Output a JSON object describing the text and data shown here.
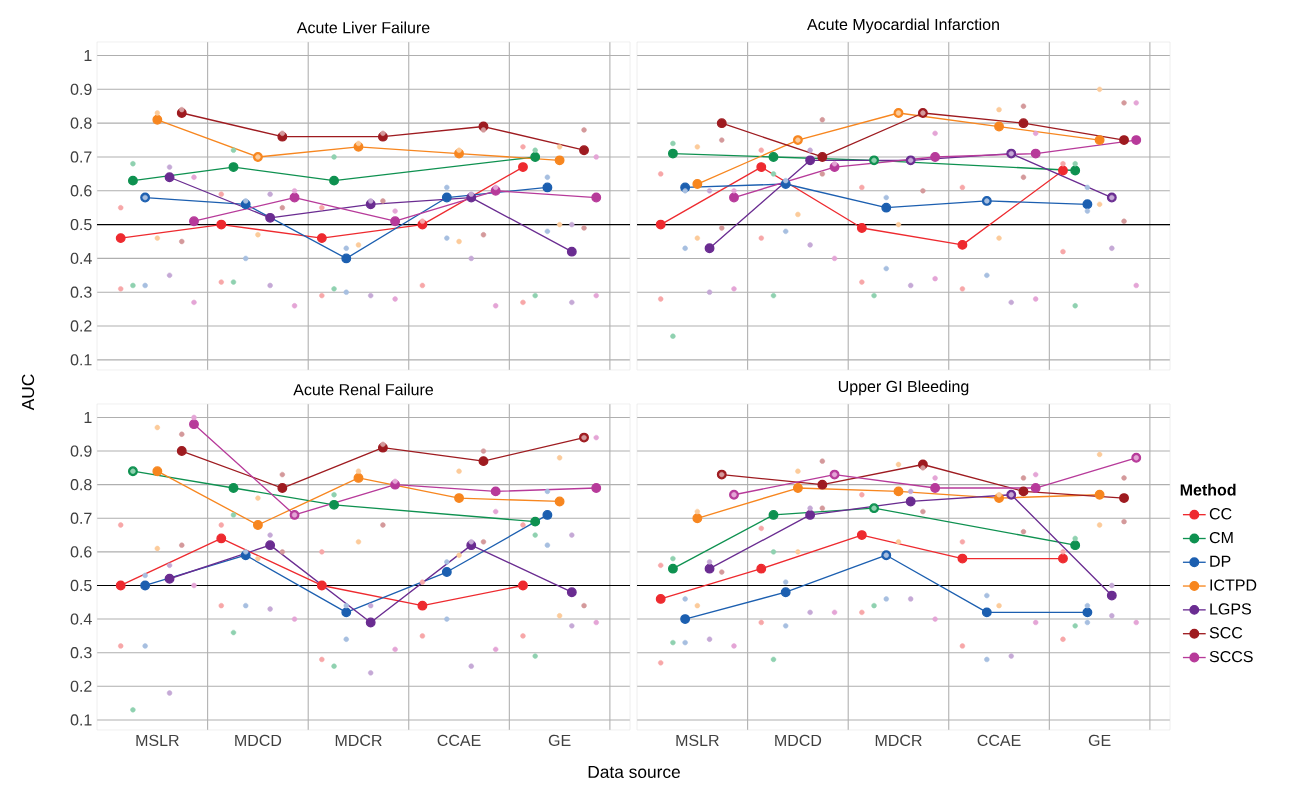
{
  "chart_data": [
    {
      "type": "line",
      "title": "Acute Liver Failure",
      "ylabel": "AUC",
      "categories": [
        "MSLR",
        "MDCD",
        "MDCR",
        "CCAE",
        "GE"
      ],
      "ylim": [
        0.07,
        1.04
      ],
      "yticks": [
        0.1,
        0.2,
        0.3,
        0.4,
        0.5,
        0.6,
        0.7,
        0.8,
        0.9,
        1
      ],
      "grid": true,
      "marker": "circle",
      "tick_labels": "y",
      "ref_lines": [
        {
          "axis": "y",
          "value": 0.5,
          "color": "#000000"
        }
      ],
      "series": [
        {
          "type": "scatter",
          "color": "#f7a7a8",
          "x": [
            "MSLR",
            "MSLR",
            "MDCD",
            "MDCD",
            "MDCR",
            "MDCR",
            "CCAE",
            "CCAE",
            "GE",
            "GE"
          ],
          "values": [
            0.55,
            0.31,
            0.59,
            0.33,
            0.55,
            0.29,
            0.51,
            0.32,
            0.73,
            0.27
          ]
        },
        {
          "type": "scatter",
          "color": "#8fd1b0",
          "x": [
            "MSLR",
            "MSLR",
            "MDCD",
            "MDCD",
            "MDCR",
            "MDCR",
            "GE",
            "GE"
          ],
          "values": [
            0.68,
            0.32,
            0.72,
            0.33,
            0.7,
            0.31,
            0.72,
            0.29
          ]
        },
        {
          "type": "scatter",
          "color": "#a7bfe0",
          "x": [
            "MSLR",
            "MSLR",
            "MDCD",
            "MDCD",
            "MDCR",
            "MDCR",
            "CCAE",
            "CCAE",
            "GE",
            "GE"
          ],
          "values": [
            0.58,
            0.32,
            0.57,
            0.4,
            0.43,
            0.3,
            0.61,
            0.46,
            0.64,
            0.48
          ]
        },
        {
          "type": "scatter",
          "color": "#fccb9a",
          "x": [
            "MSLR",
            "MSLR",
            "MDCD",
            "MDCD",
            "MDCR",
            "MDCR",
            "CCAE",
            "CCAE",
            "GE",
            "GE"
          ],
          "values": [
            0.83,
            0.46,
            0.7,
            0.47,
            0.74,
            0.44,
            0.72,
            0.45,
            0.73,
            0.5
          ]
        },
        {
          "type": "scatter",
          "color": "#c5a9d6",
          "x": [
            "MSLR",
            "MSLR",
            "MDCD",
            "MDCD",
            "MDCR",
            "MDCR",
            "CCAE",
            "CCAE",
            "GE",
            "GE"
          ],
          "values": [
            0.67,
            0.35,
            0.59,
            0.32,
            0.57,
            0.29,
            0.59,
            0.4,
            0.5,
            0.27
          ]
        },
        {
          "type": "scatter",
          "color": "#d4999b",
          "x": [
            "MSLR",
            "MSLR",
            "MDCD",
            "MDCD",
            "MDCR",
            "MDCR",
            "CCAE",
            "CCAE",
            "GE",
            "GE"
          ],
          "values": [
            0.84,
            0.45,
            0.77,
            0.55,
            0.77,
            0.57,
            0.78,
            0.47,
            0.78,
            0.49
          ]
        },
        {
          "type": "scatter",
          "color": "#e4a5d6",
          "x": [
            "MSLR",
            "MSLR",
            "MDCD",
            "MDCD",
            "MDCR",
            "MDCR",
            "CCAE",
            "CCAE",
            "GE",
            "GE"
          ],
          "values": [
            0.64,
            0.27,
            0.6,
            0.26,
            0.54,
            0.28,
            0.61,
            0.26,
            0.7,
            0.29
          ]
        },
        {
          "color": "#ee2a2f",
          "values": [
            0.46,
            0.5,
            0.46,
            0.5,
            0.67
          ]
        },
        {
          "color": "#0e9150",
          "values": [
            0.63,
            0.67,
            0.63,
            null,
            0.7
          ]
        },
        {
          "color": "#1c5fb0",
          "values": [
            0.58,
            0.56,
            0.4,
            0.58,
            0.61
          ]
        },
        {
          "color": "#f7861f",
          "values": [
            0.81,
            0.7,
            0.73,
            0.71,
            0.69
          ]
        },
        {
          "color": "#6a2c91",
          "values": [
            0.64,
            0.52,
            0.56,
            0.58,
            0.42
          ]
        },
        {
          "color": "#9e1b20",
          "values": [
            0.83,
            0.76,
            0.76,
            0.79,
            0.72
          ]
        },
        {
          "color": "#b73a9a",
          "values": [
            0.51,
            0.58,
            0.51,
            0.6,
            0.58
          ]
        }
      ]
    },
    {
      "type": "line",
      "title": "Acute Myocardial Infarction",
      "categories": [
        "MSLR",
        "MDCD",
        "MDCR",
        "CCAE",
        "GE"
      ],
      "ylim": [
        0.07,
        1.04
      ],
      "yticks": [
        0.1,
        0.2,
        0.3,
        0.4,
        0.5,
        0.6,
        0.7,
        0.8,
        0.9,
        1
      ],
      "grid": true,
      "marker": "circle",
      "tick_labels": false,
      "legend": "right",
      "legend_title": "Method",
      "ref_lines": [
        {
          "axis": "y",
          "value": 0.5,
          "color": "#000000"
        }
      ],
      "series": [
        {
          "type": "scatter",
          "color": "#f7a7a8",
          "x": [
            "MSLR",
            "MSLR",
            "MDCD",
            "MDCD",
            "MDCR",
            "MDCR",
            "CCAE",
            "CCAE",
            "GE",
            "GE"
          ],
          "values": [
            0.65,
            0.28,
            0.72,
            0.46,
            0.61,
            0.33,
            0.61,
            0.31,
            0.68,
            0.42
          ]
        },
        {
          "type": "scatter",
          "color": "#8fd1b0",
          "x": [
            "MSLR",
            "MSLR",
            "MDCD",
            "MDCD",
            "MDCR",
            "MDCR",
            "GE",
            "GE"
          ],
          "values": [
            0.74,
            0.17,
            0.65,
            0.29,
            0.69,
            0.29,
            0.68,
            0.26
          ]
        },
        {
          "type": "scatter",
          "color": "#a7bfe0",
          "x": [
            "MSLR",
            "MSLR",
            "MDCD",
            "MDCD",
            "MDCR",
            "MDCR",
            "CCAE",
            "CCAE",
            "GE",
            "GE"
          ],
          "values": [
            0.6,
            0.43,
            0.63,
            0.48,
            0.58,
            0.37,
            0.57,
            0.35,
            0.61,
            0.54
          ]
        },
        {
          "type": "scatter",
          "color": "#fccb9a",
          "x": [
            "MSLR",
            "MSLR",
            "MDCD",
            "MDCD",
            "MDCR",
            "MDCR",
            "CCAE",
            "CCAE",
            "GE",
            "GE"
          ],
          "values": [
            0.73,
            0.46,
            0.75,
            0.53,
            0.83,
            0.5,
            0.84,
            0.46,
            0.9,
            0.56
          ]
        },
        {
          "type": "scatter",
          "color": "#c5a9d6",
          "x": [
            "MSLR",
            "MSLR",
            "MDCD",
            "MDCD",
            "MDCR",
            "MDCR",
            "CCAE",
            "CCAE",
            "GE",
            "GE"
          ],
          "values": [
            0.6,
            0.3,
            0.72,
            0.44,
            0.69,
            0.32,
            0.71,
            0.27,
            0.58,
            0.43
          ]
        },
        {
          "type": "scatter",
          "color": "#d4999b",
          "x": [
            "MSLR",
            "MSLR",
            "MDCD",
            "MDCD",
            "MDCR",
            "MDCR",
            "CCAE",
            "CCAE",
            "GE",
            "GE"
          ],
          "values": [
            0.75,
            0.49,
            0.81,
            0.65,
            0.83,
            0.6,
            0.85,
            0.64,
            0.86,
            0.51
          ]
        },
        {
          "type": "scatter",
          "color": "#e4a5d6",
          "x": [
            "MSLR",
            "MSLR",
            "MDCD",
            "MDCD",
            "MDCR",
            "MDCR",
            "CCAE",
            "CCAE",
            "GE",
            "GE"
          ],
          "values": [
            0.6,
            0.31,
            0.68,
            0.4,
            0.77,
            0.34,
            0.77,
            0.28,
            0.86,
            0.32
          ]
        },
        {
          "name": "CC",
          "color": "#ee2a2f",
          "values": [
            0.5,
            0.67,
            0.49,
            0.44,
            0.66
          ]
        },
        {
          "name": "CM",
          "color": "#0e9150",
          "values": [
            0.71,
            0.7,
            0.69,
            null,
            0.66
          ]
        },
        {
          "name": "DP",
          "color": "#1c5fb0",
          "values": [
            0.61,
            0.62,
            0.55,
            0.57,
            0.56
          ]
        },
        {
          "name": "ICTPD",
          "color": "#f7861f",
          "values": [
            0.62,
            0.75,
            0.83,
            0.79,
            0.75
          ]
        },
        {
          "name": "LGPS",
          "color": "#6a2c91",
          "values": [
            0.43,
            0.69,
            0.69,
            0.71,
            0.58
          ]
        },
        {
          "name": "SCC",
          "color": "#9e1b20",
          "values": [
            0.8,
            0.7,
            0.83,
            0.8,
            0.75
          ]
        },
        {
          "name": "SCCS",
          "color": "#b73a9a",
          "values": [
            0.58,
            0.67,
            0.7,
            0.71,
            0.75
          ]
        }
      ]
    },
    {
      "type": "line",
      "title": "Acute Renal Failure",
      "xlabel": "Data source",
      "categories": [
        "MSLR",
        "MDCD",
        "MDCR",
        "CCAE",
        "GE"
      ],
      "ylim": [
        0.07,
        1.04
      ],
      "yticks": [
        0.1,
        0.2,
        0.3,
        0.4,
        0.5,
        0.6,
        0.7,
        0.8,
        0.9,
        1
      ],
      "grid": true,
      "marker": "circle",
      "ref_lines": [
        {
          "axis": "y",
          "value": 0.5,
          "color": "#000000"
        }
      ],
      "series": [
        {
          "type": "scatter",
          "color": "#f7a7a8",
          "x": [
            "MSLR",
            "MSLR",
            "MDCD",
            "MDCD",
            "MDCR",
            "MDCR",
            "CCAE",
            "CCAE",
            "GE",
            "GE"
          ],
          "values": [
            0.68,
            0.32,
            0.68,
            0.44,
            0.6,
            0.28,
            0.51,
            0.35,
            0.68,
            0.35
          ]
        },
        {
          "type": "scatter",
          "color": "#8fd1b0",
          "x": [
            "MSLR",
            "MSLR",
            "MDCD",
            "MDCD",
            "MDCR",
            "MDCR",
            "GE",
            "GE"
          ],
          "values": [
            0.84,
            0.13,
            0.71,
            0.36,
            0.77,
            0.26,
            0.65,
            0.29
          ]
        },
        {
          "type": "scatter",
          "color": "#a7bfe0",
          "x": [
            "MSLR",
            "MSLR",
            "MDCD",
            "MDCD",
            "MDCR",
            "MDCR",
            "CCAE",
            "CCAE",
            "GE",
            "GE"
          ],
          "values": [
            0.53,
            0.32,
            0.6,
            0.44,
            0.44,
            0.34,
            0.57,
            0.4,
            0.78,
            0.62
          ]
        },
        {
          "type": "scatter",
          "color": "#fccb9a",
          "x": [
            "MSLR",
            "MSLR",
            "MDCD",
            "MDCD",
            "MDCR",
            "MDCR",
            "CCAE",
            "CCAE",
            "GE",
            "GE"
          ],
          "values": [
            0.97,
            0.61,
            0.76,
            0.58,
            0.84,
            0.63,
            0.84,
            0.59,
            0.88,
            0.41
          ]
        },
        {
          "type": "scatter",
          "color": "#c5a9d6",
          "x": [
            "MSLR",
            "MSLR",
            "MDCD",
            "MDCD",
            "MDCR",
            "MDCR",
            "CCAE",
            "CCAE",
            "GE",
            "GE"
          ],
          "values": [
            0.56,
            0.18,
            0.65,
            0.43,
            0.44,
            0.24,
            0.63,
            0.26,
            0.65,
            0.38
          ]
        },
        {
          "type": "scatter",
          "color": "#d4999b",
          "x": [
            "MSLR",
            "MSLR",
            "MDCD",
            "MDCD",
            "MDCR",
            "MDCR",
            "CCAE",
            "CCAE",
            "GE",
            "GE"
          ],
          "values": [
            0.95,
            0.62,
            0.83,
            0.6,
            0.92,
            0.68,
            0.9,
            0.63,
            0.94,
            0.44
          ]
        },
        {
          "type": "scatter",
          "color": "#e4a5d6",
          "x": [
            "MSLR",
            "MSLR",
            "MDCD",
            "MDCD",
            "MDCR",
            "MDCR",
            "CCAE",
            "CCAE",
            "GE",
            "GE"
          ],
          "values": [
            1.0,
            0.5,
            0.71,
            0.4,
            0.81,
            0.31,
            0.72,
            0.31,
            0.94,
            0.39
          ]
        },
        {
          "color": "#ee2a2f",
          "values": [
            0.5,
            0.64,
            0.5,
            0.44,
            0.5
          ]
        },
        {
          "color": "#0e9150",
          "values": [
            0.84,
            0.79,
            0.74,
            null,
            0.69
          ]
        },
        {
          "color": "#1c5fb0",
          "values": [
            0.5,
            0.59,
            0.42,
            0.54,
            0.71
          ]
        },
        {
          "color": "#f7861f",
          "values": [
            0.84,
            0.68,
            0.82,
            0.76,
            0.75
          ]
        },
        {
          "color": "#6a2c91",
          "values": [
            0.52,
            0.62,
            0.39,
            0.62,
            0.48
          ]
        },
        {
          "color": "#9e1b20",
          "values": [
            0.9,
            0.79,
            0.91,
            0.87,
            0.94
          ]
        },
        {
          "color": "#b73a9a",
          "values": [
            0.98,
            0.71,
            0.8,
            0.78,
            0.79
          ]
        }
      ]
    },
    {
      "type": "line",
      "title": "Upper GI Bleeding",
      "categories": [
        "MSLR",
        "MDCD",
        "MDCR",
        "CCAE",
        "GE"
      ],
      "ylim": [
        0.07,
        1.04
      ],
      "yticks": [
        0.1,
        0.2,
        0.3,
        0.4,
        0.5,
        0.6,
        0.7,
        0.8,
        0.9,
        1
      ],
      "grid": true,
      "marker": "circle",
      "tick_labels": "x",
      "ref_lines": [
        {
          "axis": "y",
          "value": 0.5,
          "color": "#000000"
        }
      ],
      "series": [
        {
          "type": "scatter",
          "color": "#f7a7a8",
          "x": [
            "MSLR",
            "MSLR",
            "MDCD",
            "MDCD",
            "MDCR",
            "MDCR",
            "CCAE",
            "CCAE",
            "GE",
            "GE"
          ],
          "values": [
            0.56,
            0.27,
            0.67,
            0.39,
            0.77,
            0.42,
            0.63,
            0.32,
            0.6,
            0.34
          ]
        },
        {
          "type": "scatter",
          "color": "#8fd1b0",
          "x": [
            "MSLR",
            "MSLR",
            "MDCD",
            "MDCD",
            "MDCR",
            "MDCR",
            "GE",
            "GE"
          ],
          "values": [
            0.58,
            0.33,
            0.6,
            0.28,
            0.73,
            0.44,
            0.64,
            0.38
          ]
        },
        {
          "type": "scatter",
          "color": "#a7bfe0",
          "x": [
            "MSLR",
            "MSLR",
            "MDCD",
            "MDCD",
            "MDCR",
            "MDCR",
            "CCAE",
            "CCAE",
            "GE",
            "GE"
          ],
          "values": [
            0.46,
            0.33,
            0.51,
            0.38,
            0.59,
            0.46,
            0.47,
            0.28,
            0.44,
            0.39
          ]
        },
        {
          "type": "scatter",
          "color": "#fccb9a",
          "x": [
            "MSLR",
            "MSLR",
            "MDCD",
            "MDCD",
            "MDCR",
            "MDCR",
            "CCAE",
            "CCAE",
            "GE",
            "GE"
          ],
          "values": [
            0.72,
            0.44,
            0.84,
            0.6,
            0.86,
            0.63,
            0.77,
            0.44,
            0.89,
            0.68
          ]
        },
        {
          "type": "scatter",
          "color": "#c5a9d6",
          "x": [
            "MSLR",
            "MSLR",
            "MDCD",
            "MDCD",
            "MDCR",
            "MDCR",
            "CCAE",
            "CCAE",
            "GE",
            "GE"
          ],
          "values": [
            0.57,
            0.34,
            0.73,
            0.42,
            0.78,
            0.46,
            0.77,
            0.29,
            0.5,
            0.41
          ]
        },
        {
          "type": "scatter",
          "color": "#d4999b",
          "x": [
            "MSLR",
            "MSLR",
            "MDCD",
            "MDCD",
            "MDCR",
            "MDCR",
            "CCAE",
            "CCAE",
            "GE",
            "GE"
          ],
          "values": [
            0.83,
            0.54,
            0.87,
            0.73,
            0.85,
            0.72,
            0.82,
            0.66,
            0.82,
            0.69
          ]
        },
        {
          "type": "scatter",
          "color": "#e4a5d6",
          "x": [
            "MSLR",
            "MSLR",
            "MDCD",
            "MDCD",
            "MDCR",
            "MDCR",
            "CCAE",
            "CCAE",
            "GE",
            "GE"
          ],
          "values": [
            0.77,
            0.32,
            0.83,
            0.42,
            0.82,
            0.4,
            0.83,
            0.39,
            0.88,
            0.39
          ]
        },
        {
          "color": "#ee2a2f",
          "values": [
            0.46,
            0.55,
            0.65,
            0.58,
            0.58
          ]
        },
        {
          "color": "#0e9150",
          "values": [
            0.55,
            0.71,
            0.73,
            null,
            0.62
          ]
        },
        {
          "color": "#1c5fb0",
          "values": [
            0.4,
            0.48,
            0.59,
            0.42,
            0.42
          ]
        },
        {
          "color": "#f7861f",
          "values": [
            0.7,
            0.79,
            0.78,
            0.76,
            0.77
          ]
        },
        {
          "color": "#6a2c91",
          "values": [
            0.55,
            0.71,
            0.75,
            0.77,
            0.47
          ]
        },
        {
          "color": "#9e1b20",
          "values": [
            0.83,
            0.8,
            0.86,
            0.78,
            0.76
          ]
        },
        {
          "color": "#b73a9a",
          "values": [
            0.77,
            0.83,
            0.79,
            0.79,
            0.88
          ]
        }
      ]
    }
  ]
}
